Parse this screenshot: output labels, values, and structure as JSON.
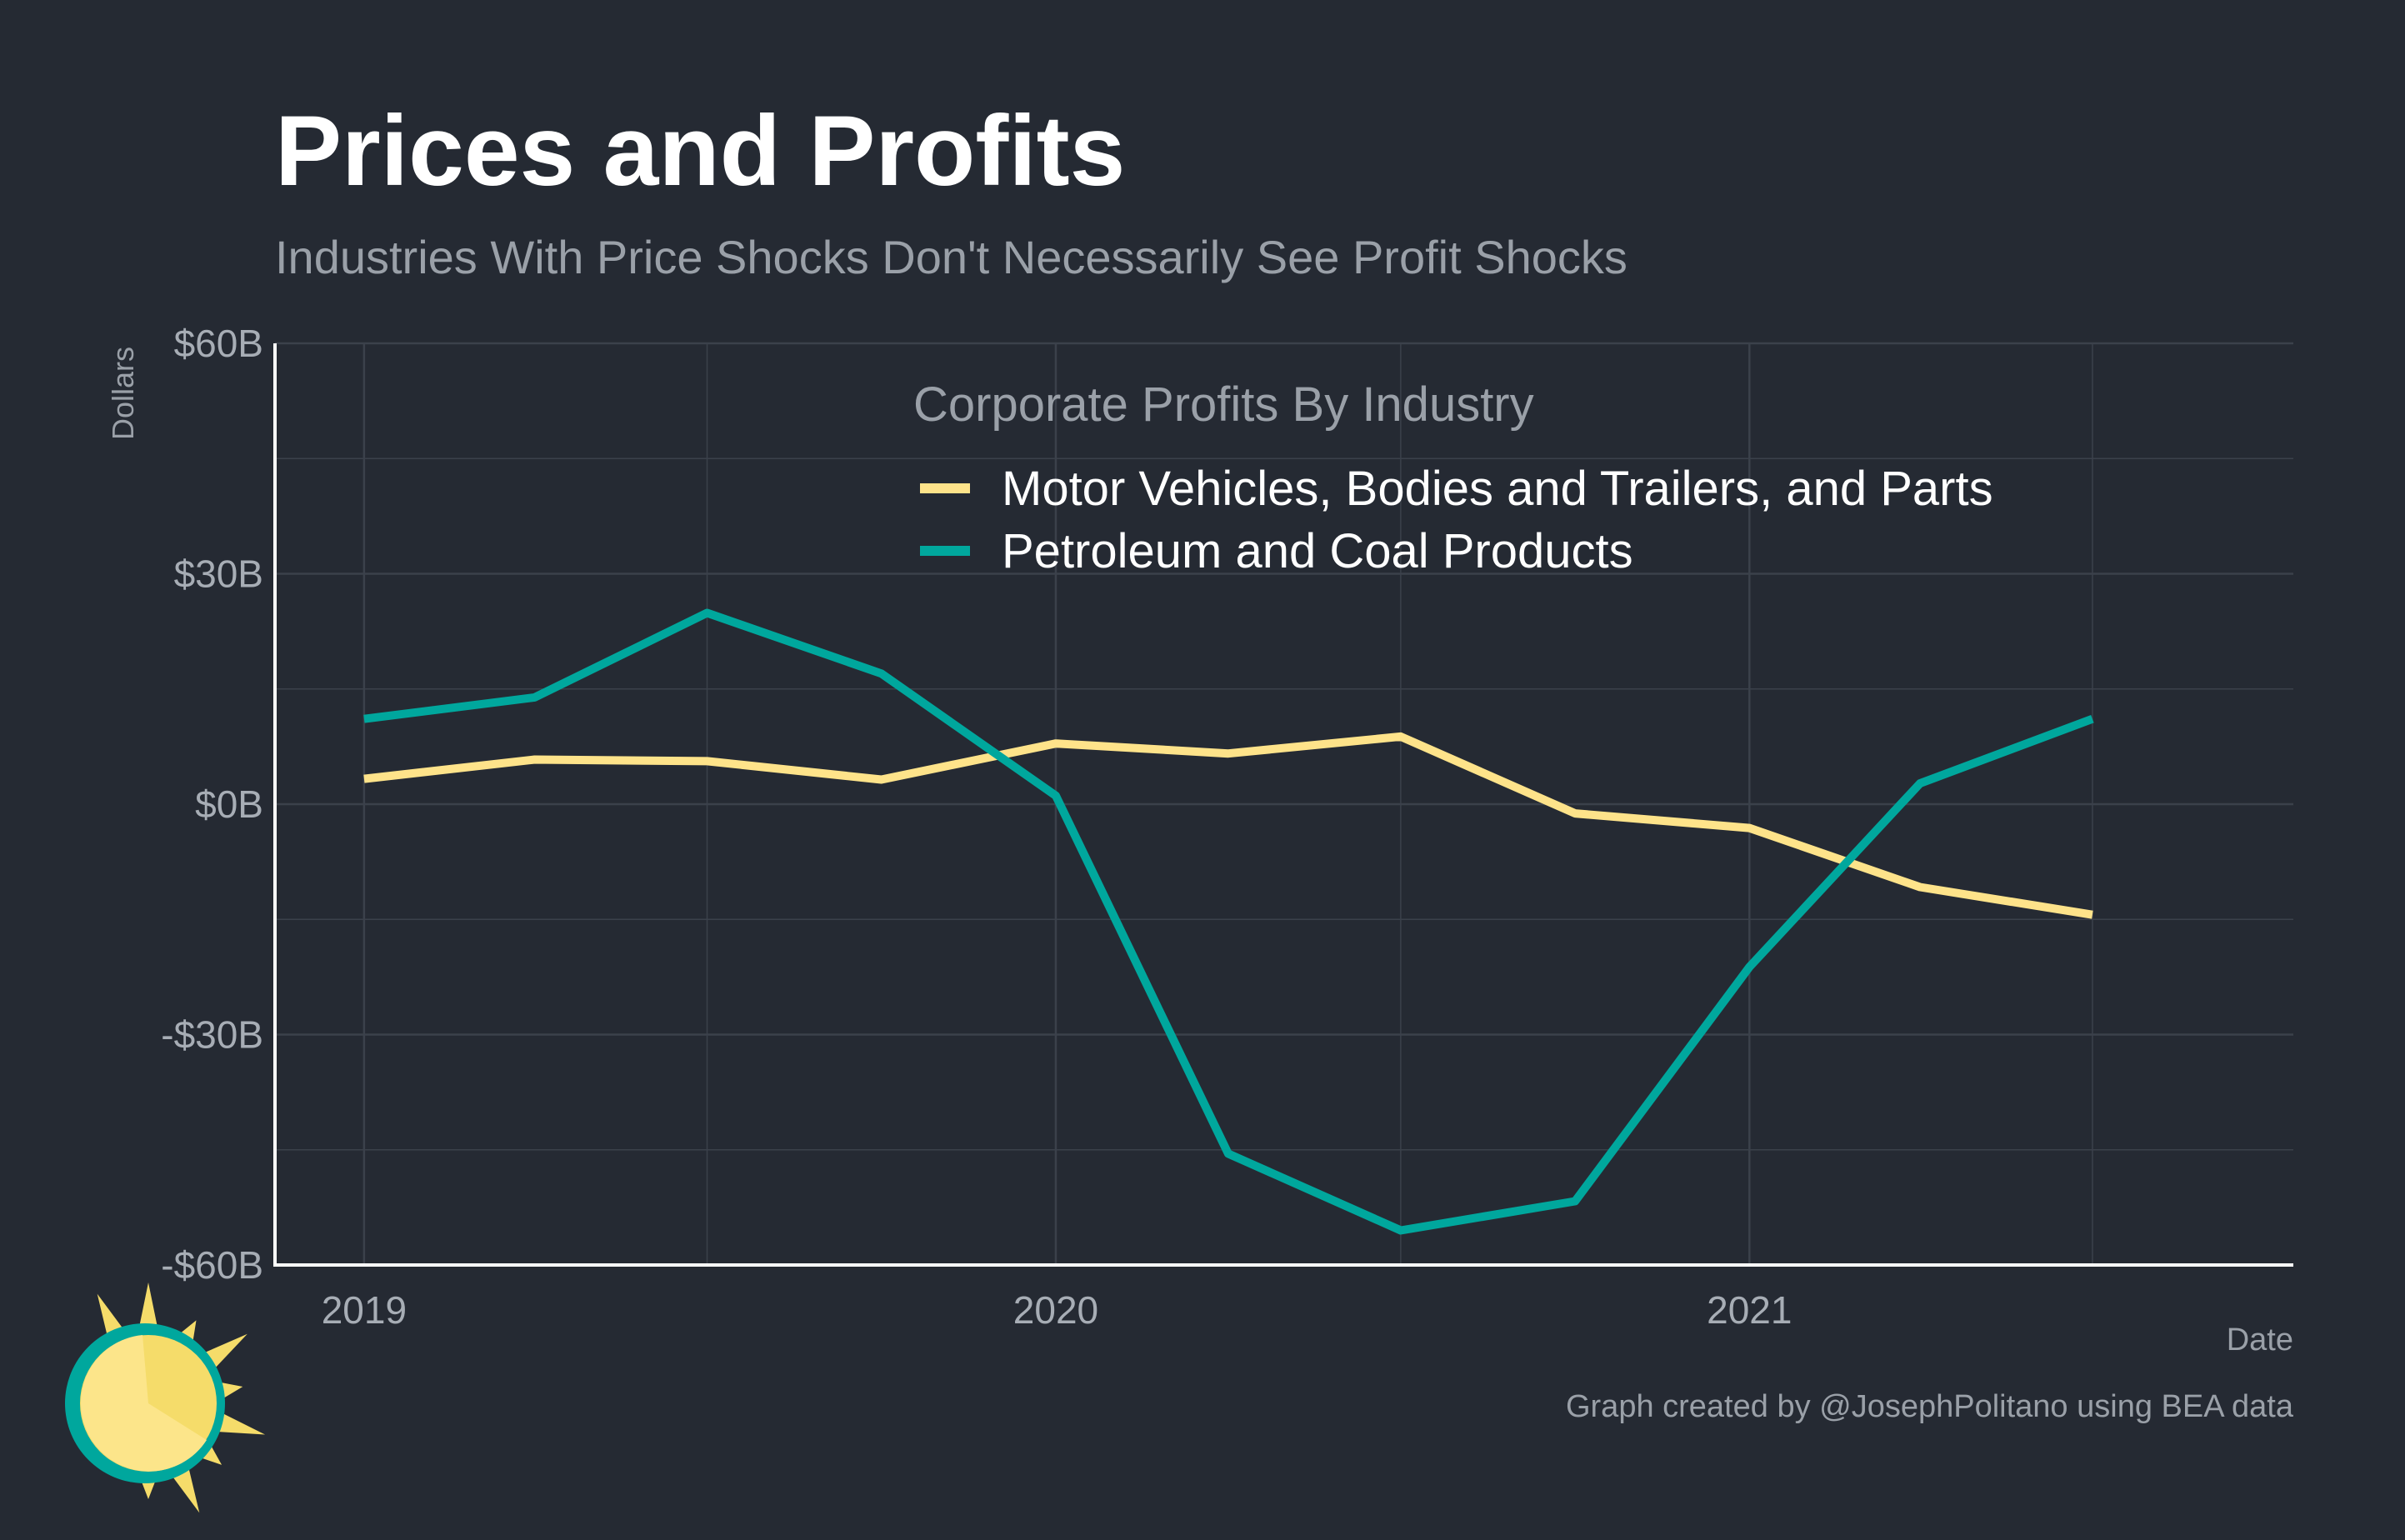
{
  "header": {
    "title": "Prices and Profits",
    "subtitle": "Industries With Price Shocks Don't Necessarily See Profit Shocks"
  },
  "footer": {
    "caption": "Graph created by @JosephPolitano using BEA data"
  },
  "logo": {
    "icon": "sun-logo-icon",
    "colors": {
      "ring": "#00a79d",
      "face": "#fce58a",
      "rays": "#f5dc6a"
    }
  },
  "colors": {
    "background": "#252a33",
    "grid": "#3b414b",
    "axis": "#ffffff",
    "title": "#ffffff",
    "subtitle": "#9aa0a8",
    "tick_label": "#a7adb5",
    "legend_text": "#ffffff",
    "legend_title": "#9aa0a8"
  },
  "chart_data": {
    "type": "line",
    "title": "Prices and Profits",
    "subtitle": "Industries With Price Shocks Don't Necessarily See Profit Shocks",
    "xlabel": "Date",
    "ylabel": "Dollars",
    "x_type": "date",
    "xlim": [
      "2018-11-15",
      "2021-10-15"
    ],
    "ylim": [
      -60,
      60
    ],
    "x_ticks": [
      {
        "value": "2019-01-01",
        "label": "2019"
      },
      {
        "value": "2020-01-01",
        "label": "2020"
      },
      {
        "value": "2021-01-01",
        "label": "2021"
      }
    ],
    "x_minor_grid": [
      "2019-07-01",
      "2020-07-01",
      "2021-07-01"
    ],
    "y_ticks": [
      {
        "value": 60,
        "label": "$60B"
      },
      {
        "value": 30,
        "label": "$30B"
      },
      {
        "value": 0,
        "label": "$0B"
      },
      {
        "value": -30,
        "label": "-$30B"
      },
      {
        "value": -60,
        "label": "-$60B"
      }
    ],
    "y_minor_grid": [
      45,
      15,
      -15,
      -45
    ],
    "grid": true,
    "legend": {
      "title": "Corporate Profits By Industry",
      "position": "top-right"
    },
    "x": [
      "2019-01-01",
      "2019-04-01",
      "2019-07-01",
      "2019-10-01",
      "2020-01-01",
      "2020-04-01",
      "2020-07-01",
      "2020-10-01",
      "2021-01-01",
      "2021-04-01",
      "2021-07-01"
    ],
    "series": [
      {
        "name": "Motor Vehicles, Bodies and Trailers, and Parts",
        "color": "#fee38a",
        "values": [
          3.3,
          5.8,
          5.6,
          3.2,
          7.9,
          6.6,
          8.8,
          -1.2,
          -3.1,
          -10.8,
          -14.4
        ]
      },
      {
        "name": "Petroleum and Coal Products",
        "color": "#00a79d",
        "values": [
          11.1,
          13.9,
          24.9,
          17.0,
          1.1,
          -45.5,
          -55.5,
          -51.7,
          -21.2,
          2.7,
          11.1
        ]
      }
    ]
  }
}
